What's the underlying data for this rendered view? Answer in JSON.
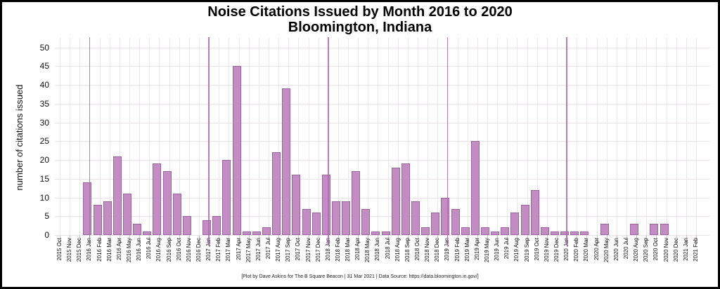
{
  "figure": {
    "title_line1": "Noise Citations Issued by Month 2016 to 2020",
    "title_line2": "Bloomington, Indiana",
    "y_axis_label": "number of citations issued",
    "footer": "[Plot by Dave Askins for The B Square Beacon | 31 Mar 2021 | Data Source: https://data.bloomington.in.gov/]"
  },
  "chart_data": {
    "type": "bar",
    "title": "Noise Citations Issued by Month 2016 to 2020",
    "subtitle": "Bloomington, Indiana",
    "xlabel": "",
    "ylabel": "number of citations issued",
    "ylim": [
      0,
      52
    ],
    "y_ticks": [
      0,
      5,
      10,
      15,
      20,
      25,
      30,
      35,
      40,
      45,
      50
    ],
    "grid": true,
    "legend": "none",
    "bar_color": "#c38dc3",
    "bar_edge_color": "#9c63a2",
    "year_line_color": "#b267b2",
    "year_lines_at": [
      "2016 Jan",
      "2017 Jan",
      "2018 Jan",
      "2019 Jan",
      "2020 Jan"
    ],
    "categories": [
      "2015 Oct",
      "2015 Nov",
      "2015 Dec",
      "2016 Jan",
      "2016 Feb",
      "2016 Mar",
      "2016 Apr",
      "2016 May",
      "2016 Jun",
      "2016 Jul",
      "2016 Aug",
      "2016 Sep",
      "2016 Oct",
      "2016 Nov",
      "2016 Dec",
      "2017 Jan",
      "2017 Feb",
      "2017 Mar",
      "2017 Apr",
      "2017 May",
      "2017 Jun",
      "2017 Jul",
      "2017 Aug",
      "2017 Sep",
      "2017 Oct",
      "2017 Nov",
      "2017 Dec",
      "2018 Jan",
      "2018 Feb",
      "2018 Mar",
      "2018 Apr",
      "2018 May",
      "2018 Jun",
      "2018 Jul",
      "2018 Aug",
      "2018 Sep",
      "2018 Oct",
      "2018 Nov",
      "2018 Dec",
      "2019 Jan",
      "2019 Feb",
      "2019 Mar",
      "2019 Apr",
      "2019 May",
      "2019 Jun",
      "2019 Jul",
      "2019 Aug",
      "2019 Sep",
      "2019 Oct",
      "2019 Nov",
      "2019 Dec",
      "2020 Jan",
      "2020 Feb",
      "2020 Mar",
      "2020 Apr",
      "2020 May",
      "2020 Jun",
      "2020 Jul",
      "2020 Aug",
      "2020 Sep",
      "2020 Oct",
      "2020 Nov",
      "2020 Dec",
      "2021 Jan",
      "2021 Feb"
    ],
    "values": [
      0,
      0,
      0,
      14,
      8,
      9,
      21,
      11,
      3,
      1,
      19,
      17,
      11,
      5,
      0,
      4,
      5,
      20,
      45,
      1,
      1,
      2,
      22,
      39,
      16,
      7,
      6,
      16,
      9,
      9,
      17,
      7,
      1,
      1,
      18,
      19,
      9,
      2,
      6,
      10,
      7,
      2,
      25,
      2,
      1,
      2,
      6,
      8,
      12,
      2,
      1,
      1,
      1,
      1,
      0,
      3,
      0,
      0,
      3,
      0,
      3,
      3,
      0,
      0,
      0
    ]
  }
}
